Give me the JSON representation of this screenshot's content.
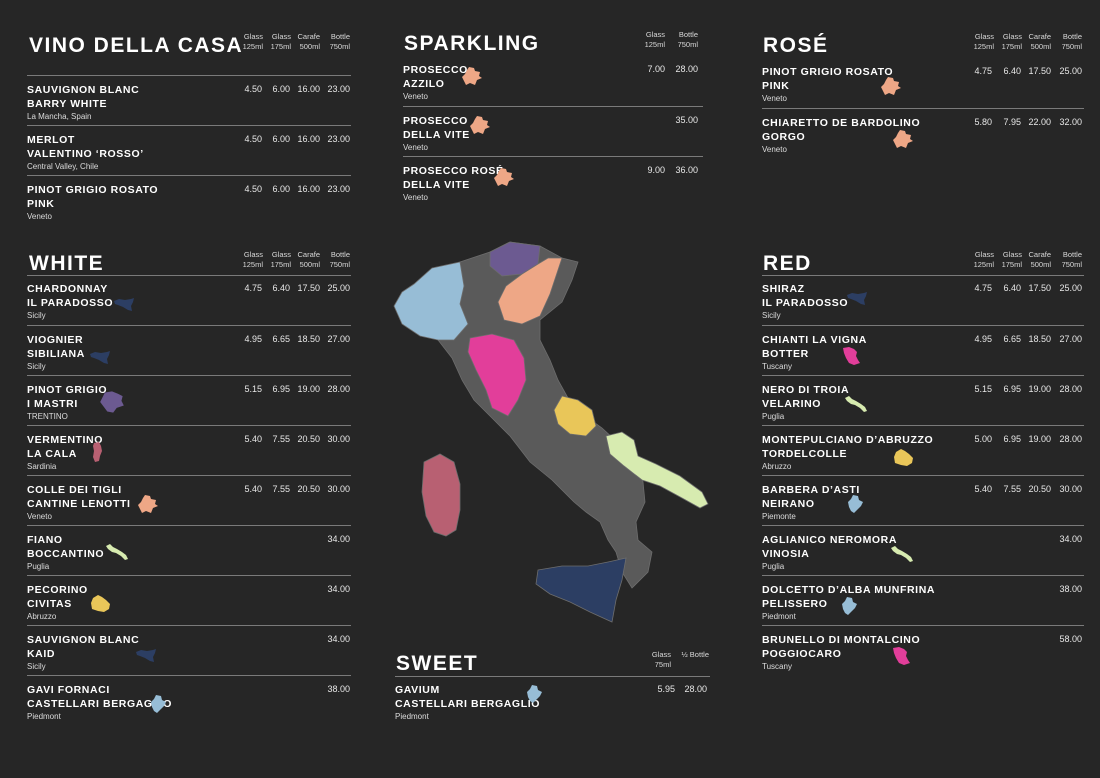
{
  "colors": {
    "background": "#262626",
    "sicily": "#2c3e63",
    "veneto": "#eea786",
    "trentino": "#6c5a91",
    "sardinia": "#b86072",
    "puglia": "#d7ebb0",
    "abruzzo": "#e9c659",
    "piedmont": "#97bdd6",
    "tuscany": "#e23e9a"
  },
  "sections": {
    "casa": {
      "title": "VINO DELLA CASA",
      "columns": [
        {
          "l1": "Glass",
          "l2": "125ml"
        },
        {
          "l1": "Glass",
          "l2": "175ml"
        },
        {
          "l1": "Carafe",
          "l2": "500ml"
        },
        {
          "l1": "Bottle",
          "l2": "750ml"
        }
      ],
      "items": [
        {
          "line1": "SAUVIGNON BLANC",
          "line2": "BARRY WHITE",
          "region": "La Mancha, Spain",
          "prices": [
            "4.50",
            "6.00",
            "16.00",
            "23.00"
          ]
        },
        {
          "line1": "MERLOT",
          "line2": "VALENTINO ‘ROSSO’",
          "region": "Central Valley, Chile",
          "prices": [
            "4.50",
            "6.00",
            "16.00",
            "23.00"
          ]
        },
        {
          "line1": "PINOT GRIGIO ROSATO",
          "line2": "PINK",
          "region": "Veneto",
          "prices": [
            "4.50",
            "6.00",
            "16.00",
            "23.00"
          ]
        }
      ]
    },
    "sparkling": {
      "title": "SPARKLING",
      "columns": [
        {
          "l1": "Glass",
          "l2": "125ml"
        },
        {
          "l1": "Bottle",
          "l2": "750ml"
        }
      ],
      "items": [
        {
          "line1": "PROSECCO",
          "line2": "AZZILO",
          "region": "Veneto",
          "prices": [
            "7.00",
            "28.00"
          ],
          "icon": "veneto-region-icon"
        },
        {
          "line1": "PROSECCO",
          "line2": "DELLA VITE",
          "region": "Veneto",
          "prices": [
            "",
            "35.00"
          ],
          "icon": "veneto-region-icon"
        },
        {
          "line1": "PROSECCO ROSÉ",
          "line2": "DELLA VITE",
          "region": "Veneto",
          "prices": [
            "9.00",
            "36.00"
          ],
          "icon": "veneto-region-icon"
        }
      ]
    },
    "rose": {
      "title": "ROSÉ",
      "columns": [
        {
          "l1": "Glass",
          "l2": "125ml"
        },
        {
          "l1": "Glass",
          "l2": "175ml"
        },
        {
          "l1": "Carafe",
          "l2": "500ml"
        },
        {
          "l1": "Bottle",
          "l2": "750ml"
        }
      ],
      "items": [
        {
          "line1": "PINOT GRIGIO ROSATO",
          "line2": "PINK",
          "region": "Veneto",
          "prices": [
            "4.75",
            "6.40",
            "17.50",
            "25.00"
          ],
          "icon": "veneto-region-icon"
        },
        {
          "line1": "CHIARETTO DE BARDOLINO",
          "line2": "GORGO",
          "region": "Veneto",
          "prices": [
            "5.80",
            "7.95",
            "22.00",
            "32.00"
          ],
          "icon": "veneto-region-icon"
        }
      ]
    },
    "white": {
      "title": "WHITE",
      "columns": [
        {
          "l1": "Glass",
          "l2": "125ml"
        },
        {
          "l1": "Glass",
          "l2": "175ml"
        },
        {
          "l1": "Carafe",
          "l2": "500ml"
        },
        {
          "l1": "Bottle",
          "l2": "750ml"
        }
      ],
      "items": [
        {
          "line1": "CHARDONNAY",
          "line2": "IL PARADOSSO",
          "region": "Sicily",
          "prices": [
            "4.75",
            "6.40",
            "17.50",
            "25.00"
          ],
          "icon": "sicily-region-icon"
        },
        {
          "line1": "VIOGNIER",
          "line2": "SIBILIANA",
          "region": "Sicily",
          "prices": [
            "4.95",
            "6.65",
            "18.50",
            "27.00"
          ],
          "icon": "sicily-region-icon"
        },
        {
          "line1": "PINOT GRIGIO",
          "line2": "I MASTRI",
          "region": "TRENTINO",
          "prices": [
            "5.15",
            "6.95",
            "19.00",
            "28.00"
          ],
          "icon": "trentino-region-icon"
        },
        {
          "line1": "VERMENTINO",
          "line2": "LA CALA",
          "region": "Sardinia",
          "prices": [
            "5.40",
            "7.55",
            "20.50",
            "30.00"
          ],
          "icon": "sardinia-region-icon"
        },
        {
          "line1": "COLLE DEI TIGLI",
          "line2": "CANTINE LENOTTI",
          "region": "Veneto",
          "prices": [
            "5.40",
            "7.55",
            "20.50",
            "30.00"
          ],
          "icon": "veneto-region-icon"
        },
        {
          "line1": "FIANO",
          "line2": "BOCCANTINO",
          "region": "Puglia",
          "prices": [
            "",
            "",
            "",
            "34.00"
          ],
          "icon": "puglia-region-icon"
        },
        {
          "line1": "PECORINO",
          "line2": "CIVITAS",
          "region": "Abruzzo",
          "prices": [
            "",
            "",
            "",
            "34.00"
          ],
          "icon": "abruzzo-region-icon"
        },
        {
          "line1": "SAUVIGNON BLANC",
          "line2": "KAID",
          "region": "Sicily",
          "prices": [
            "",
            "",
            "",
            "34.00"
          ],
          "icon": "sicily-region-icon"
        },
        {
          "line1": "GAVI FORNACI",
          "line2": "CASTELLARI BERGAGLIO",
          "region": "Piedmont",
          "prices": [
            "",
            "",
            "",
            "38.00"
          ],
          "icon": "piedmont-region-icon"
        }
      ]
    },
    "red": {
      "title": "RED",
      "columns": [
        {
          "l1": "Glass",
          "l2": "125ml"
        },
        {
          "l1": "Glass",
          "l2": "175ml"
        },
        {
          "l1": "Carafe",
          "l2": "500ml"
        },
        {
          "l1": "Bottle",
          "l2": "750ml"
        }
      ],
      "items": [
        {
          "line1": "SHIRAZ",
          "line2": "IL PARADOSSO",
          "region": "Sicily",
          "prices": [
            "4.75",
            "6.40",
            "17.50",
            "25.00"
          ],
          "icon": "sicily-region-icon"
        },
        {
          "line1": "CHIANTI LA VIGNA",
          "line2": "BOTTER",
          "region": "Tuscany",
          "prices": [
            "4.95",
            "6.65",
            "18.50",
            "27.00"
          ],
          "icon": "tuscany-region-icon"
        },
        {
          "line1": "NERO DI TROIA",
          "line2": "VELARINO",
          "region": "Puglia",
          "prices": [
            "5.15",
            "6.95",
            "19.00",
            "28.00"
          ],
          "icon": "puglia-region-icon"
        },
        {
          "line1": "MONTEPULCIANO D’ABRUZZO",
          "line2": "TORDELCOLLE",
          "region": "Abruzzo",
          "prices": [
            "5.00",
            "6.95",
            "19.00",
            "28.00"
          ],
          "icon": "abruzzo-region-icon"
        },
        {
          "line1": "BARBERA D’ASTI",
          "line2": "NEIRANO",
          "region": "Piemonte",
          "prices": [
            "5.40",
            "7.55",
            "20.50",
            "30.00"
          ],
          "icon": "piedmont-region-icon"
        },
        {
          "line1": "AGLIANICO NEROMORA",
          "line2": "VINOSIA",
          "region": "Puglia",
          "prices": [
            "",
            "",
            "",
            "34.00"
          ],
          "icon": "puglia-region-icon"
        },
        {
          "line1": "DOLCETTO D’ALBA MUNFRINA",
          "line2": "PELISSERO",
          "region": "Piedmont",
          "prices": [
            "",
            "",
            "",
            "38.00"
          ],
          "icon": "piedmont-region-icon"
        },
        {
          "line1": "BRUNELLO DI MONTALCINO",
          "line2": "POGGIOCARO",
          "region": "Tuscany",
          "prices": [
            "",
            "",
            "",
            "58.00"
          ],
          "icon": "tuscany-region-icon"
        }
      ]
    },
    "sweet": {
      "title": "SWEET",
      "columns": [
        {
          "l1": "Glass",
          "l2": "75ml"
        },
        {
          "l1": "½ Bottle",
          "l2": ""
        }
      ],
      "items": [
        {
          "line1": "GAVIUM",
          "line2": "CASTELLARI BERGAGLIO",
          "region": "Piedmont",
          "prices": [
            "5.95",
            "28.00"
          ],
          "icon": "piedmont-region-icon"
        }
      ]
    }
  }
}
